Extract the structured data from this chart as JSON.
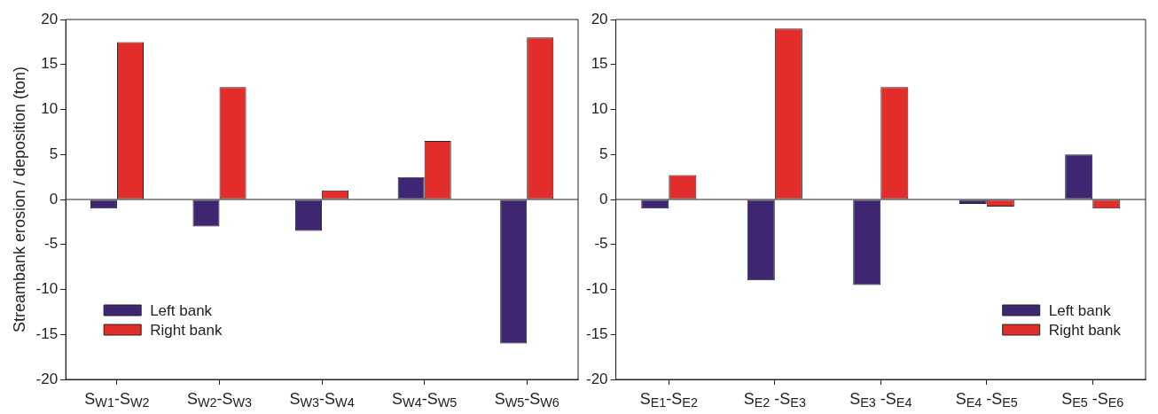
{
  "chart_data": [
    {
      "type": "bar",
      "ylabel": "Streambank erosion / deposition (ton)",
      "categories": [
        "S$_{W1}$-S$_{W2}$",
        "S$_{W2}$-S$_{W3}$",
        "S$_{W3}$-S$_{W4}$",
        "S$_{W4}$-S$_{W5}$",
        "S$_{W5}$-S$_{W6}$"
      ],
      "series": [
        {
          "name": "Left bank",
          "color": "#3f2673",
          "values": [
            -1,
            -3,
            -3.5,
            2.5,
            -16
          ]
        },
        {
          "name": "Right bank",
          "color": "#e32d2b",
          "values": [
            17.5,
            12.5,
            1,
            6.5,
            18
          ]
        }
      ],
      "ylim": [
        -20,
        20
      ],
      "yticks": [
        -20,
        -15,
        -10,
        -5,
        0,
        5,
        10,
        15,
        20
      ],
      "legend": "bottom left"
    },
    {
      "type": "bar",
      "categories": [
        "S$_{E1}$-S$_{E2}$",
        "S$_{E2}$ -S$_{E3}$",
        "S$_{E3}$ -S$_{E4}$",
        "S$_{E4}$ -S$_{E5}$",
        "S$_{E5}$ -S$_{E6}$"
      ],
      "series": [
        {
          "name": "Left bank",
          "color": "#3f2673",
          "values": [
            -1,
            -9,
            -9.5,
            -0.5,
            5
          ]
        },
        {
          "name": "Right bank",
          "color": "#e32d2b",
          "values": [
            2.7,
            19,
            12.5,
            -0.8,
            -1
          ]
        }
      ],
      "ylim": [
        -20,
        20
      ],
      "yticks": [
        -20,
        -15,
        -10,
        -5,
        0,
        5,
        10,
        15,
        20
      ],
      "legend": "bottom right"
    }
  ]
}
